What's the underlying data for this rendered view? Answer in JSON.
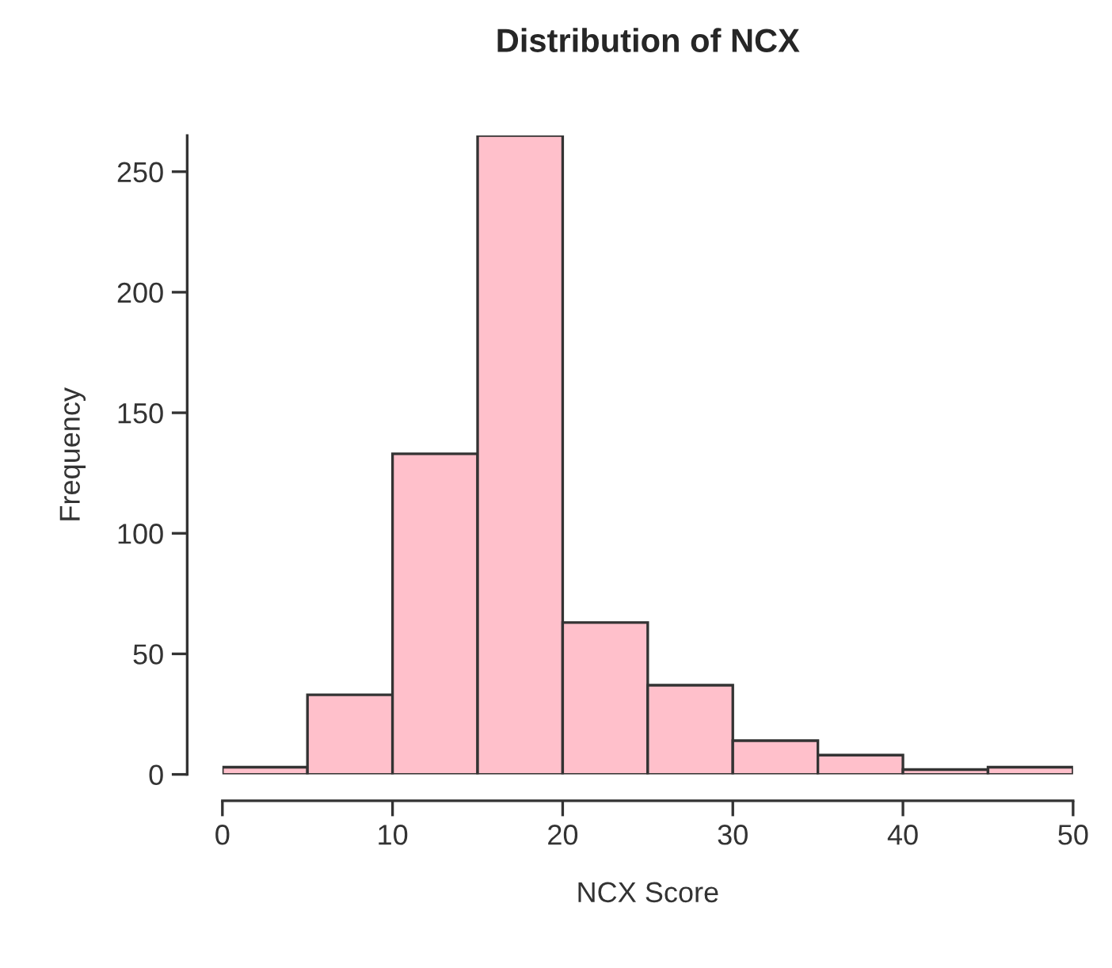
{
  "chart_data": {
    "type": "histogram",
    "title": "Distribution of NCX",
    "xlabel": "NCX Score",
    "ylabel": "Frequency",
    "bins": [
      0,
      5,
      10,
      15,
      20,
      25,
      30,
      35,
      40,
      45,
      50
    ],
    "values": [
      3,
      33,
      133,
      265,
      63,
      37,
      14,
      8,
      2,
      3
    ],
    "color": "#ffc0cb",
    "xlim": [
      0,
      50
    ],
    "ylim": [
      0,
      265
    ],
    "xticks": [
      0,
      10,
      20,
      30,
      40,
      50
    ],
    "yticks": [
      0,
      50,
      100,
      150,
      200,
      250
    ],
    "grid": false
  }
}
